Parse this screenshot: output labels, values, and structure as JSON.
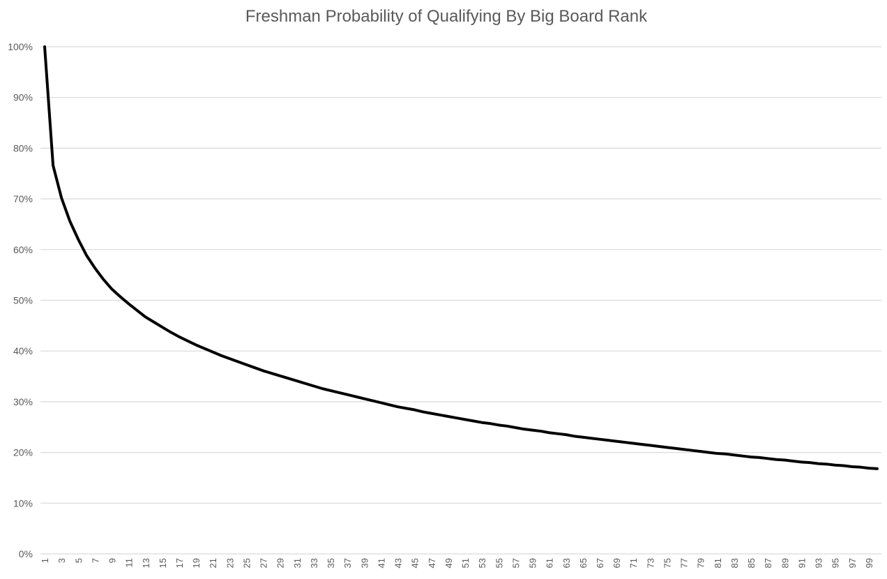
{
  "chart_data": {
    "type": "line",
    "title": "Freshman Probability of Qualifying By Big Board Rank",
    "xlabel": "",
    "ylabel": "",
    "x": [
      1,
      2,
      3,
      4,
      5,
      6,
      7,
      8,
      9,
      10,
      11,
      12,
      13,
      14,
      15,
      16,
      17,
      18,
      19,
      20,
      21,
      22,
      23,
      24,
      25,
      26,
      27,
      28,
      29,
      30,
      31,
      32,
      33,
      34,
      35,
      36,
      37,
      38,
      39,
      40,
      41,
      42,
      43,
      44,
      45,
      46,
      47,
      48,
      49,
      50,
      51,
      52,
      53,
      54,
      55,
      56,
      57,
      58,
      59,
      60,
      61,
      62,
      63,
      64,
      65,
      66,
      67,
      68,
      69,
      70,
      71,
      72,
      73,
      74,
      75,
      76,
      77,
      78,
      79,
      80,
      81,
      82,
      83,
      84,
      85,
      86,
      87,
      88,
      89,
      90,
      91,
      92,
      93,
      94,
      95,
      96,
      97,
      98,
      99,
      100
    ],
    "x_tick_labels": [
      "1",
      "3",
      "5",
      "7",
      "9",
      "11",
      "13",
      "15",
      "17",
      "19",
      "21",
      "23",
      "25",
      "27",
      "29",
      "31",
      "33",
      "35",
      "37",
      "39",
      "41",
      "43",
      "45",
      "47",
      "49",
      "51",
      "53",
      "55",
      "57",
      "59",
      "61",
      "63",
      "65",
      "67",
      "69",
      "71",
      "73",
      "75",
      "77",
      "79",
      "81",
      "83",
      "85",
      "87",
      "89",
      "91",
      "93",
      "95",
      "97",
      "99"
    ],
    "series": [
      {
        "values": [
          1.0,
          0.766,
          0.702,
          0.656,
          0.62,
          0.588,
          0.563,
          0.541,
          0.522,
          0.507,
          0.493,
          0.48,
          0.467,
          0.457,
          0.447,
          0.437,
          0.428,
          0.42,
          0.412,
          0.405,
          0.398,
          0.391,
          0.385,
          0.379,
          0.373,
          0.367,
          0.361,
          0.356,
          0.351,
          0.346,
          0.341,
          0.336,
          0.331,
          0.326,
          0.322,
          0.318,
          0.314,
          0.31,
          0.306,
          0.302,
          0.298,
          0.294,
          0.29,
          0.287,
          0.284,
          0.28,
          0.277,
          0.274,
          0.271,
          0.268,
          0.265,
          0.262,
          0.259,
          0.257,
          0.254,
          0.252,
          0.249,
          0.246,
          0.244,
          0.242,
          0.239,
          0.237,
          0.235,
          0.232,
          0.23,
          0.228,
          0.226,
          0.224,
          0.222,
          0.22,
          0.218,
          0.216,
          0.214,
          0.212,
          0.21,
          0.208,
          0.206,
          0.204,
          0.202,
          0.2,
          0.198,
          0.197,
          0.195,
          0.193,
          0.191,
          0.19,
          0.188,
          0.186,
          0.185,
          0.183,
          0.181,
          0.18,
          0.178,
          0.177,
          0.175,
          0.174,
          0.172,
          0.171,
          0.169,
          0.168
        ]
      }
    ],
    "ylim": [
      0,
      1
    ],
    "y_ticks": [
      0,
      0.1,
      0.2,
      0.3,
      0.4,
      0.5,
      0.6,
      0.7,
      0.8,
      0.9,
      1.0
    ],
    "y_tick_labels": [
      "0%",
      "10%",
      "20%",
      "30%",
      "40%",
      "50%",
      "60%",
      "70%",
      "80%",
      "90%",
      "100%"
    ],
    "grid": true,
    "legend": "none",
    "line_color": "#000000",
    "grid_color": "#d9d9d9",
    "text_color": "#595959"
  }
}
